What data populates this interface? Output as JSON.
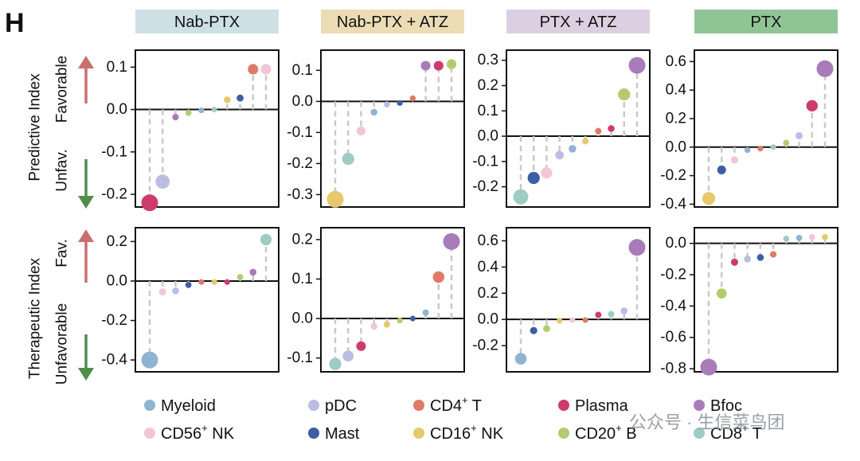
{
  "panel_label": "H",
  "watermark": "公众号 · 生信菜鸟团",
  "row_labels": {
    "predictive": "Predictive Index",
    "therapeutic": "Therapeutic Index",
    "favorable": "Favorable",
    "unfav": "Unfav.",
    "fav": "Fav.",
    "unfavorable": "Unfavorable"
  },
  "colors": {
    "header_nab_ptx": "#cde0e6",
    "header_nab_atz": "#ecdcb5",
    "header_ptx_atz": "#ddcfe2",
    "header_ptx": "#91c495",
    "arrow_up": "#c96f6f",
    "arrow_down": "#4f8e4a"
  },
  "legend": [
    {
      "name": "Myeloid",
      "sup": "",
      "suffix": "",
      "color": "#8fb3d3"
    },
    {
      "name": "pDC",
      "sup": "",
      "suffix": "",
      "color": "#bcbde2"
    },
    {
      "name": "CD4",
      "sup": "+",
      "suffix": " T",
      "color": "#e07a68"
    },
    {
      "name": "Plasma",
      "sup": "",
      "suffix": "",
      "color": "#cf3a6c"
    },
    {
      "name": "Bfoc",
      "sup": "",
      "suffix": "",
      "color": "#a77cb8"
    },
    {
      "name": "CD56",
      "sup": "+",
      "suffix": " NK",
      "color": "#f2c6d7"
    },
    {
      "name": "Mast",
      "sup": "",
      "suffix": "",
      "color": "#3c5ea3"
    },
    {
      "name": "CD16",
      "sup": "+",
      "suffix": " NK",
      "color": "#e6c86d"
    },
    {
      "name": "CD20",
      "sup": "+",
      "suffix": " B",
      "color": "#b2cc6e"
    },
    {
      "name": "CD8",
      "sup": "+",
      "suffix": " T",
      "color": "#9dccc4"
    }
  ],
  "chart_data": [
    {
      "type": "scatter",
      "row": "Predictive Index",
      "title": "Nab-PTX",
      "ylim": [
        -0.23,
        0.14
      ],
      "yticks": [
        -0.2,
        -0.1,
        0.0,
        0.1
      ],
      "yticklabels": [
        "-0.2",
        "-0.1",
        "0.0",
        "0.1"
      ],
      "points": [
        {
          "cell": "Plasma",
          "value": -0.22
        },
        {
          "cell": "pDC",
          "value": -0.17
        },
        {
          "cell": "Bfoc",
          "value": -0.018
        },
        {
          "cell": "CD20+ B",
          "value": -0.008
        },
        {
          "cell": "Myeloid",
          "value": -0.002
        },
        {
          "cell": "CD8+ T",
          "value": 0.0
        },
        {
          "cell": "CD16+ NK",
          "value": 0.023
        },
        {
          "cell": "Mast",
          "value": 0.027
        },
        {
          "cell": "CD4+ T",
          "value": 0.095
        },
        {
          "cell": "CD56+ NK",
          "value": 0.095
        }
      ]
    },
    {
      "type": "scatter",
      "row": "Predictive Index",
      "title": "Nab-PTX + ATZ",
      "ylim": [
        -0.34,
        0.165
      ],
      "yticks": [
        -0.3,
        -0.2,
        -0.1,
        0.0,
        0.1
      ],
      "yticklabels": [
        "-0.3",
        "-0.2",
        "-0.1",
        "0.0",
        "0.1"
      ],
      "points": [
        {
          "cell": "CD16+ NK",
          "value": -0.315
        },
        {
          "cell": "CD8+ T",
          "value": -0.185
        },
        {
          "cell": "CD56+ NK",
          "value": -0.095
        },
        {
          "cell": "Myeloid",
          "value": -0.035
        },
        {
          "cell": "pDC",
          "value": -0.01
        },
        {
          "cell": "Mast",
          "value": -0.005
        },
        {
          "cell": "CD4+ T",
          "value": 0.01
        },
        {
          "cell": "Bfoc",
          "value": 0.115
        },
        {
          "cell": "Plasma",
          "value": 0.115
        },
        {
          "cell": "CD20+ B",
          "value": 0.12
        }
      ]
    },
    {
      "type": "scatter",
      "row": "Predictive Index",
      "title": "PTX + ATZ",
      "ylim": [
        -0.28,
        0.34
      ],
      "yticks": [
        -0.2,
        -0.1,
        0.0,
        0.1,
        0.2,
        0.3
      ],
      "yticklabels": [
        "-0.2",
        "-0.1",
        "0.0",
        "0.1",
        "0.2",
        "0.3"
      ],
      "points": [
        {
          "cell": "CD8+ T",
          "value": -0.24
        },
        {
          "cell": "Mast",
          "value": -0.165
        },
        {
          "cell": "CD56+ NK",
          "value": -0.145
        },
        {
          "cell": "pDC",
          "value": -0.075
        },
        {
          "cell": "Myeloid",
          "value": -0.05
        },
        {
          "cell": "CD16+ NK",
          "value": -0.02
        },
        {
          "cell": "CD4+ T",
          "value": 0.02
        },
        {
          "cell": "Plasma",
          "value": 0.03
        },
        {
          "cell": "CD20+ B",
          "value": 0.165
        },
        {
          "cell": "Bfoc",
          "value": 0.28
        }
      ]
    },
    {
      "type": "scatter",
      "row": "Predictive Index",
      "title": "PTX",
      "ylim": [
        -0.42,
        0.68
      ],
      "yticks": [
        -0.4,
        -0.2,
        0.0,
        0.2,
        0.4,
        0.6
      ],
      "yticklabels": [
        "-0.4",
        "-0.2",
        "0.0",
        "0.2",
        "0.4",
        "0.6"
      ],
      "points": [
        {
          "cell": "CD16+ NK",
          "value": -0.36
        },
        {
          "cell": "Mast",
          "value": -0.16
        },
        {
          "cell": "CD56+ NK",
          "value": -0.09
        },
        {
          "cell": "Myeloid",
          "value": -0.02
        },
        {
          "cell": "CD4+ T",
          "value": -0.01
        },
        {
          "cell": "CD8+ T",
          "value": 0.0
        },
        {
          "cell": "CD20+ B",
          "value": 0.03
        },
        {
          "cell": "pDC",
          "value": 0.08
        },
        {
          "cell": "Plasma",
          "value": 0.29
        },
        {
          "cell": "Bfoc",
          "value": 0.55
        }
      ]
    },
    {
      "type": "scatter",
      "row": "Therapeutic Index",
      "title": "Nab-PTX",
      "ylim": [
        -0.46,
        0.27
      ],
      "yticks": [
        -0.4,
        -0.2,
        0.0,
        0.2
      ],
      "yticklabels": [
        "-0.4",
        "-0.2",
        "0.0",
        "0.2"
      ],
      "points": [
        {
          "cell": "Myeloid",
          "value": -0.4
        },
        {
          "cell": "CD56+ NK",
          "value": -0.055
        },
        {
          "cell": "pDC",
          "value": -0.05
        },
        {
          "cell": "Mast",
          "value": -0.02
        },
        {
          "cell": "CD4+ T",
          "value": -0.005
        },
        {
          "cell": "CD16+ NK",
          "value": -0.005
        },
        {
          "cell": "Plasma",
          "value": -0.005
        },
        {
          "cell": "CD20+ B",
          "value": 0.02
        },
        {
          "cell": "Bfoc",
          "value": 0.045
        },
        {
          "cell": "CD8+ T",
          "value": 0.21
        }
      ]
    },
    {
      "type": "scatter",
      "row": "Therapeutic Index",
      "title": "Nab-PTX + ATZ",
      "ylim": [
        -0.135,
        0.23
      ],
      "yticks": [
        -0.1,
        0.0,
        0.1,
        0.2
      ],
      "yticklabels": [
        "-0.1",
        "0.0",
        "0.1",
        "0.2"
      ],
      "points": [
        {
          "cell": "CD8+ T",
          "value": -0.115
        },
        {
          "cell": "pDC",
          "value": -0.095
        },
        {
          "cell": "Plasma",
          "value": -0.07
        },
        {
          "cell": "CD56+ NK",
          "value": -0.02
        },
        {
          "cell": "CD16+ NK",
          "value": -0.015
        },
        {
          "cell": "CD20+ B",
          "value": -0.005
        },
        {
          "cell": "Mast",
          "value": 0.0
        },
        {
          "cell": "Myeloid",
          "value": 0.015
        },
        {
          "cell": "CD4+ T",
          "value": 0.105
        },
        {
          "cell": "Bfoc",
          "value": 0.195
        }
      ]
    },
    {
      "type": "scatter",
      "row": "Therapeutic Index",
      "title": "PTX + ATZ",
      "ylim": [
        -0.4,
        0.7
      ],
      "yticks": [
        -0.2,
        0.0,
        0.2,
        0.4,
        0.6
      ],
      "yticklabels": [
        "-0.2",
        "0.0",
        "0.2",
        "0.4",
        "0.6"
      ],
      "points": [
        {
          "cell": "Myeloid",
          "value": -0.3
        },
        {
          "cell": "Mast",
          "value": -0.085
        },
        {
          "cell": "CD20+ B",
          "value": -0.07
        },
        {
          "cell": "CD16+ NK",
          "value": -0.01
        },
        {
          "cell": "CD56+ NK",
          "value": -0.005
        },
        {
          "cell": "CD4+ T",
          "value": -0.005
        },
        {
          "cell": "Plasma",
          "value": 0.035
        },
        {
          "cell": "CD8+ T",
          "value": 0.04
        },
        {
          "cell": "pDC",
          "value": 0.065
        },
        {
          "cell": "Bfoc",
          "value": 0.55
        }
      ]
    },
    {
      "type": "scatter",
      "row": "Therapeutic Index",
      "title": "PTX",
      "ylim": [
        -0.82,
        0.1
      ],
      "yticks": [
        -0.8,
        -0.6,
        -0.4,
        -0.2,
        0.0
      ],
      "yticklabels": [
        "-0.8",
        "-0.6",
        "-0.4",
        "-0.2",
        "0.0"
      ],
      "points": [
        {
          "cell": "Bfoc",
          "value": -0.79
        },
        {
          "cell": "CD20+ B",
          "value": -0.32
        },
        {
          "cell": "Plasma",
          "value": -0.12
        },
        {
          "cell": "pDC",
          "value": -0.1
        },
        {
          "cell": "Mast",
          "value": -0.09
        },
        {
          "cell": "CD4+ T",
          "value": -0.07
        },
        {
          "cell": "CD8+ T",
          "value": 0.03
        },
        {
          "cell": "Myeloid",
          "value": 0.035
        },
        {
          "cell": "CD56+ NK",
          "value": 0.04
        },
        {
          "cell": "CD16+ NK",
          "value": 0.04
        }
      ]
    }
  ]
}
